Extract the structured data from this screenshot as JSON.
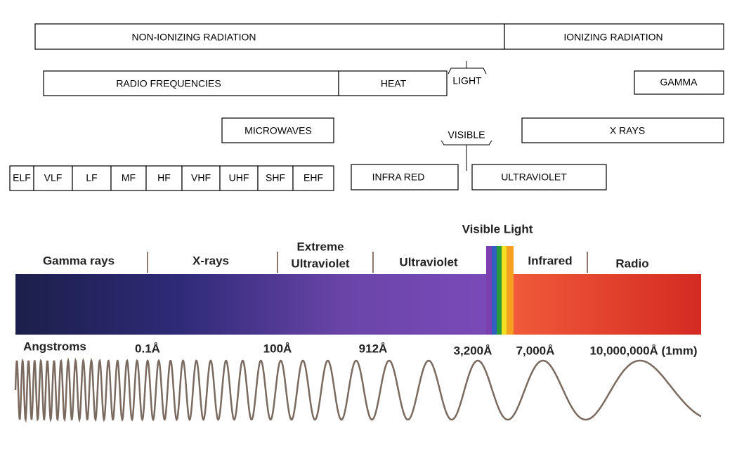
{
  "classification": {
    "radiation": [
      "NON-IONIZING RADIATION",
      "IONIZING RADIATION"
    ],
    "groups": [
      "RADIO FREQUENCIES",
      "HEAT",
      "LIGHT",
      "GAMMA"
    ],
    "subgroups": [
      "MICROWAVES",
      "VISIBLE",
      "X RAYS"
    ],
    "bands": [
      "ELF",
      "VLF",
      "LF",
      "MF",
      "HF",
      "VHF",
      "UHF",
      "SHF",
      "EHF"
    ],
    "light_parts": [
      "INFRA RED",
      "ULTRAVIOLET"
    ]
  },
  "spectrum": {
    "visible_label": "Visible Light",
    "regions": [
      "Gamma rays",
      "X-rays",
      "Extreme",
      "Ultraviolet",
      "Ultraviolet",
      "Infrared",
      "Radio"
    ],
    "unit": "Angstroms",
    "wavelengths": [
      "0.1Å",
      "100Å",
      "912Å",
      "3,200Å",
      "7,000Å",
      "10,000,000Å (1mm)"
    ]
  }
}
